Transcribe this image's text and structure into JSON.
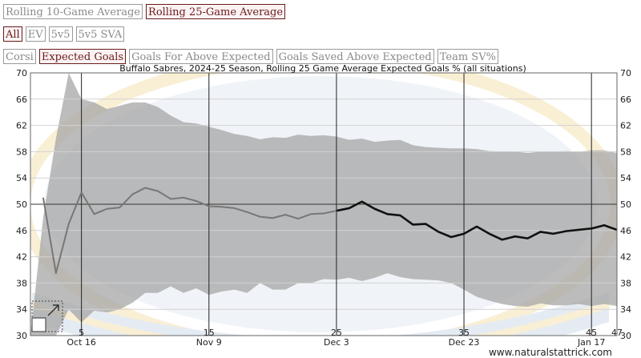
{
  "toggles": {
    "row1": [
      {
        "label": "Rolling 10-Game Average",
        "active": false
      },
      {
        "label": "Rolling 25-Game Average",
        "active": true
      }
    ],
    "row2": [
      {
        "label": "All",
        "active": true
      },
      {
        "label": "EV",
        "active": false
      },
      {
        "label": "5v5",
        "active": false
      },
      {
        "label": "5v5 SVA",
        "active": false
      }
    ],
    "row3": [
      {
        "label": "Corsi",
        "active": false
      },
      {
        "label": "Expected Goals",
        "active": true
      },
      {
        "label": "Goals For Above Expected",
        "active": false
      },
      {
        "label": "Goals Saved Above Expected",
        "active": false
      },
      {
        "label": "Team SV%",
        "active": false
      }
    ]
  },
  "credit": "www.naturalstattrick.com",
  "chart_data": {
    "type": "line",
    "title": "Buffalo Sabres, 2024-25 Season, Rolling 25 Game Average Expected Goals % (all situations)",
    "xlim": [
      1,
      47
    ],
    "ylim": [
      30,
      70
    ],
    "yticks": [
      30,
      34,
      38,
      42,
      46,
      50,
      54,
      58,
      62,
      66,
      70
    ],
    "game_ticks": [
      {
        "game": 5,
        "label": "5",
        "date": "Oct 16"
      },
      {
        "game": 15,
        "label": "15",
        "date": "Nov 9"
      },
      {
        "game": 25,
        "label": "25",
        "date": "Dec 3"
      },
      {
        "game": 35,
        "label": "35",
        "date": "Dec 23"
      },
      {
        "game": 45,
        "label": "45",
        "date": "Jan 17"
      },
      {
        "game": 47,
        "label": "47",
        "date": ""
      }
    ],
    "reference_line": 50,
    "series": [
      {
        "x": [
          2,
          3,
          4,
          5,
          6,
          7,
          8,
          9,
          10,
          11,
          12,
          13,
          14,
          15,
          16,
          17,
          18,
          19,
          20,
          21,
          22,
          23,
          24,
          25
        ],
        "values": [
          51.0,
          39.5,
          47.0,
          51.8,
          48.5,
          49.3,
          49.5,
          51.5,
          52.5,
          52.0,
          50.8,
          51.0,
          50.5,
          49.7,
          49.6,
          49.4,
          48.8,
          48.1,
          47.9,
          48.4,
          47.8,
          48.5,
          48.6,
          49.0
        ],
        "color": "#777777"
      },
      {
        "x": [
          25,
          26,
          27,
          28,
          29,
          30,
          31,
          32,
          33,
          34,
          35,
          36,
          37,
          38,
          39,
          40,
          41,
          42,
          43,
          44,
          45,
          46,
          47
        ],
        "values": [
          49.0,
          49.4,
          50.4,
          49.3,
          48.5,
          48.3,
          46.9,
          47.0,
          45.8,
          45.0,
          45.5,
          46.6,
          45.5,
          44.6,
          45.1,
          44.8,
          45.8,
          45.5,
          45.9,
          46.1,
          46.3,
          46.8,
          46.1
        ],
        "color": "#111111"
      }
    ],
    "band": {
      "x": [
        1,
        2,
        3,
        4,
        5,
        6,
        7,
        8,
        9,
        10,
        11,
        12,
        13,
        14,
        15,
        16,
        17,
        18,
        19,
        20,
        21,
        22,
        23,
        24,
        25,
        26,
        27,
        28,
        29,
        30,
        31,
        32,
        33,
        34,
        35,
        36,
        37,
        38,
        39,
        40,
        41,
        42,
        43,
        44,
        45,
        46,
        47
      ],
      "upper": [
        30,
        48,
        60,
        70,
        66,
        65.5,
        64.5,
        65,
        65.5,
        65.5,
        64.8,
        63.5,
        62.5,
        62.3,
        61.8,
        61.3,
        60.7,
        60.4,
        59.9,
        60.2,
        60.1,
        60.6,
        60.4,
        60.5,
        60.3,
        59.8,
        60,
        59.5,
        59.7,
        59.8,
        59,
        58.7,
        58.6,
        58.5,
        58.5,
        58.4,
        58.1,
        58,
        58,
        57.8,
        58,
        58,
        58.1,
        58,
        58.2,
        58.2,
        57.8
      ],
      "lower": [
        30,
        30,
        30,
        34,
        32,
        33.8,
        33.5,
        34,
        35,
        36.5,
        36.5,
        37.5,
        36.5,
        37.2,
        36.2,
        36.7,
        37,
        36.5,
        38,
        37,
        37,
        38,
        38,
        38.6,
        38.5,
        38.8,
        38.3,
        38.8,
        39.5,
        38.9,
        38.6,
        38.5,
        38.4,
        38,
        37,
        35.9,
        35.3,
        34.8,
        34.5,
        34.4,
        34.9,
        34.6,
        34.6,
        34.8,
        34.5,
        34.8,
        34.5
      ]
    }
  }
}
